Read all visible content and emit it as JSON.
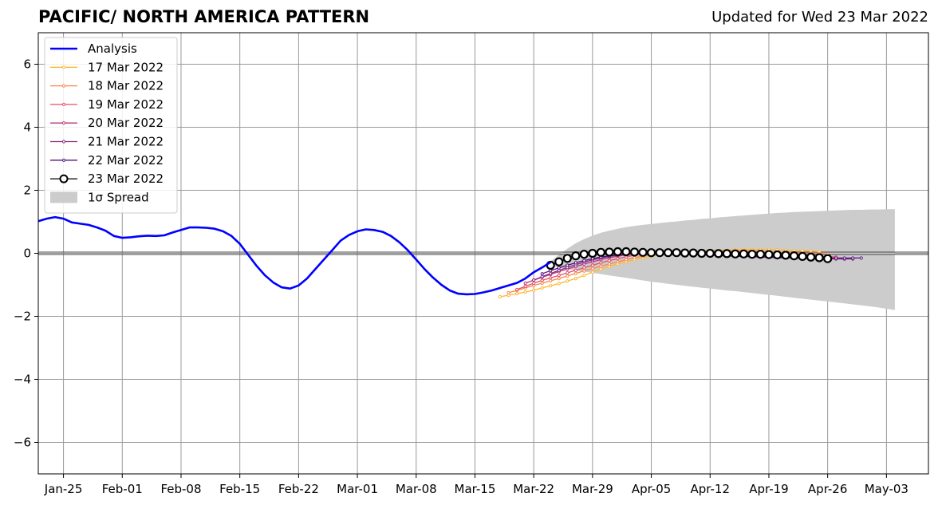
{
  "chart_data": {
    "type": "line",
    "title": "PACIFIC/ NORTH AMERICA PATTERN",
    "subtitle": "Updated for Wed 23 Mar 2022",
    "xlabel": "",
    "ylabel": "",
    "x_start_date": "2022-01-22",
    "x_end_date": "2022-05-08",
    "ylim": [
      -7,
      7
    ],
    "yticks": [
      -6,
      -4,
      -2,
      0,
      2,
      4,
      6
    ],
    "ytick_labels": [
      "−6",
      "−4",
      "−2",
      "0",
      "2",
      "4",
      "6"
    ],
    "xticks": [
      "2022-01-25",
      "2022-02-01",
      "2022-02-08",
      "2022-02-15",
      "2022-02-22",
      "2022-03-01",
      "2022-03-08",
      "2022-03-15",
      "2022-03-22",
      "2022-03-29",
      "2022-04-05",
      "2022-04-12",
      "2022-04-19",
      "2022-04-26",
      "2022-05-03"
    ],
    "xtick_labels": [
      "Jan-25",
      "Feb-01",
      "Feb-08",
      "Feb-15",
      "Feb-22",
      "Mar-01",
      "Mar-08",
      "Mar-15",
      "Mar-22",
      "Mar-29",
      "Apr-05",
      "Apr-12",
      "Apr-19",
      "Apr-26",
      "May-03"
    ],
    "grid": true,
    "legend_position": "upper-left",
    "analysis": {
      "name": "Analysis",
      "color": "#0000ff",
      "start": "2022-01-22",
      "values": [
        1.02,
        1.1,
        1.15,
        1.1,
        0.98,
        0.94,
        0.9,
        0.82,
        0.72,
        0.55,
        0.49,
        0.51,
        0.54,
        0.56,
        0.55,
        0.57,
        0.66,
        0.74,
        0.82,
        0.82,
        0.81,
        0.78,
        0.7,
        0.55,
        0.3,
        -0.05,
        -0.4,
        -0.7,
        -0.93,
        -1.08,
        -1.12,
        -1.02,
        -0.8,
        -0.5,
        -0.2,
        0.1,
        0.4,
        0.58,
        0.7,
        0.76,
        0.74,
        0.68,
        0.55,
        0.35,
        0.1,
        -0.2,
        -0.5,
        -0.77,
        -1.0,
        -1.18,
        -1.28,
        -1.3,
        -1.29,
        -1.24,
        -1.18,
        -1.1,
        -1.02,
        -0.94,
        -0.8,
        -0.6,
        -0.45,
        -0.28
      ]
    },
    "forecasts": [
      {
        "name": "17 Mar 2022",
        "color": "#ffb830",
        "start": "2022-03-18",
        "values": [
          -1.38,
          -1.33,
          -1.28,
          -1.23,
          -1.17,
          -1.1,
          -1.03,
          -0.96,
          -0.88,
          -0.8,
          -0.7,
          -0.6,
          -0.5,
          -0.42,
          -0.34,
          -0.26,
          -0.2,
          -0.14,
          -0.09,
          -0.05,
          -0.02,
          0.01,
          0.03,
          0.05,
          0.07,
          0.08,
          0.09,
          0.1,
          0.11,
          0.12,
          0.12,
          0.12,
          0.12,
          0.11,
          0.1,
          0.09,
          0.08,
          0.07,
          0.05
        ]
      },
      {
        "name": "18 Mar 2022",
        "color": "#f8874f",
        "start": "2022-03-19",
        "values": [
          -1.25,
          -1.18,
          -1.1,
          -1.02,
          -0.95,
          -0.87,
          -0.8,
          -0.72,
          -0.64,
          -0.56,
          -0.48,
          -0.41,
          -0.34,
          -0.27,
          -0.2,
          -0.14,
          -0.09,
          -0.05,
          -0.02,
          0.01,
          0.03,
          0.05,
          0.06,
          0.07,
          0.08,
          0.08,
          0.08,
          0.08,
          0.08,
          0.07,
          0.06,
          0.05,
          0.04,
          0.03,
          0.02,
          0.01,
          0.0,
          -0.01,
          -0.02
        ]
      },
      {
        "name": "19 Mar 2022",
        "color": "#e55064",
        "start": "2022-03-20",
        "values": [
          -1.15,
          -1.05,
          -0.95,
          -0.86,
          -0.78,
          -0.7,
          -0.62,
          -0.54,
          -0.46,
          -0.38,
          -0.3,
          -0.23,
          -0.17,
          -0.11,
          -0.06,
          -0.02,
          0.01,
          0.03,
          0.04,
          0.05,
          0.05,
          0.05,
          0.04,
          0.03,
          0.02,
          0.01,
          0.0,
          -0.01,
          -0.02,
          -0.03,
          -0.04,
          -0.05,
          -0.06,
          -0.07,
          -0.08,
          -0.09,
          -0.1,
          -0.11,
          -0.12
        ]
      },
      {
        "name": "20 Mar 2022",
        "color": "#b73779",
        "start": "2022-03-21",
        "values": [
          -0.95,
          -0.85,
          -0.76,
          -0.67,
          -0.58,
          -0.5,
          -0.42,
          -0.34,
          -0.27,
          -0.2,
          -0.14,
          -0.09,
          -0.05,
          -0.02,
          0.0,
          0.01,
          0.02,
          0.02,
          0.02,
          0.01,
          0.0,
          -0.01,
          -0.02,
          -0.03,
          -0.04,
          -0.05,
          -0.06,
          -0.07,
          -0.08,
          -0.09,
          -0.1,
          -0.11,
          -0.12,
          -0.13,
          -0.14,
          -0.15,
          -0.16,
          -0.17,
          -0.18
        ]
      },
      {
        "name": "21 Mar 2022",
        "color": "#8c2981",
        "start": "2022-03-22",
        "values": [
          -0.85,
          -0.74,
          -0.64,
          -0.54,
          -0.45,
          -0.36,
          -0.28,
          -0.21,
          -0.15,
          -0.1,
          -0.06,
          -0.03,
          -0.01,
          0.0,
          0.01,
          0.01,
          0.0,
          -0.01,
          -0.02,
          -0.03,
          -0.04,
          -0.05,
          -0.06,
          -0.07,
          -0.08,
          -0.09,
          -0.1,
          -0.11,
          -0.12,
          -0.13,
          -0.14,
          -0.15,
          -0.16,
          -0.17,
          -0.18,
          -0.18,
          -0.18,
          -0.18,
          -0.18
        ]
      },
      {
        "name": "22 Mar 2022",
        "color": "#51127c",
        "start": "2022-03-23",
        "values": [
          -0.65,
          -0.55,
          -0.46,
          -0.38,
          -0.3,
          -0.23,
          -0.17,
          -0.12,
          -0.08,
          -0.05,
          -0.03,
          -0.01,
          0.0,
          0.0,
          0.0,
          -0.01,
          -0.02,
          -0.03,
          -0.04,
          -0.05,
          -0.06,
          -0.07,
          -0.08,
          -0.09,
          -0.1,
          -0.11,
          -0.12,
          -0.13,
          -0.14,
          -0.15,
          -0.15,
          -0.15,
          -0.15,
          -0.15,
          -0.15,
          -0.15,
          -0.15,
          -0.15,
          -0.15
        ]
      },
      {
        "name": "23 Mar 2022",
        "color": "#000000",
        "marker": "open-circle",
        "start": "2022-03-24",
        "values": [
          -0.38,
          -0.27,
          -0.16,
          -0.08,
          -0.03,
          0.0,
          0.03,
          0.04,
          0.05,
          0.05,
          0.04,
          0.03,
          0.02,
          0.02,
          0.02,
          0.02,
          0.01,
          0.01,
          0.0,
          0.0,
          -0.01,
          -0.01,
          -0.02,
          -0.02,
          -0.03,
          -0.03,
          -0.04,
          -0.05,
          -0.06,
          -0.08,
          -0.1,
          -0.12,
          -0.14,
          -0.17
        ]
      }
    ],
    "spread": {
      "name": "1σ Spread",
      "color": "#cccccc",
      "start": "2022-03-24",
      "upper": [
        -0.25,
        -0.05,
        0.15,
        0.32,
        0.45,
        0.56,
        0.65,
        0.72,
        0.78,
        0.83,
        0.87,
        0.9,
        0.93,
        0.96,
        0.99,
        1.01,
        1.04,
        1.06,
        1.09,
        1.11,
        1.14,
        1.16,
        1.18,
        1.2,
        1.22,
        1.24,
        1.26,
        1.28,
        1.29,
        1.31,
        1.32,
        1.33,
        1.34,
        1.35,
        1.36,
        1.37,
        1.38,
        1.38,
        1.39,
        1.39,
        1.4,
        1.4
      ],
      "lower": [
        -0.4,
        -0.45,
        -0.5,
        -0.55,
        -0.58,
        -0.62,
        -0.66,
        -0.7,
        -0.74,
        -0.78,
        -0.82,
        -0.86,
        -0.9,
        -0.93,
        -0.97,
        -1.0,
        -1.03,
        -1.06,
        -1.09,
        -1.12,
        -1.15,
        -1.18,
        -1.2,
        -1.23,
        -1.26,
        -1.29,
        -1.32,
        -1.35,
        -1.38,
        -1.41,
        -1.44,
        -1.47,
        -1.5,
        -1.53,
        -1.56,
        -1.59,
        -1.62,
        -1.65,
        -1.68,
        -1.72,
        -1.76,
        -1.8
      ]
    }
  }
}
